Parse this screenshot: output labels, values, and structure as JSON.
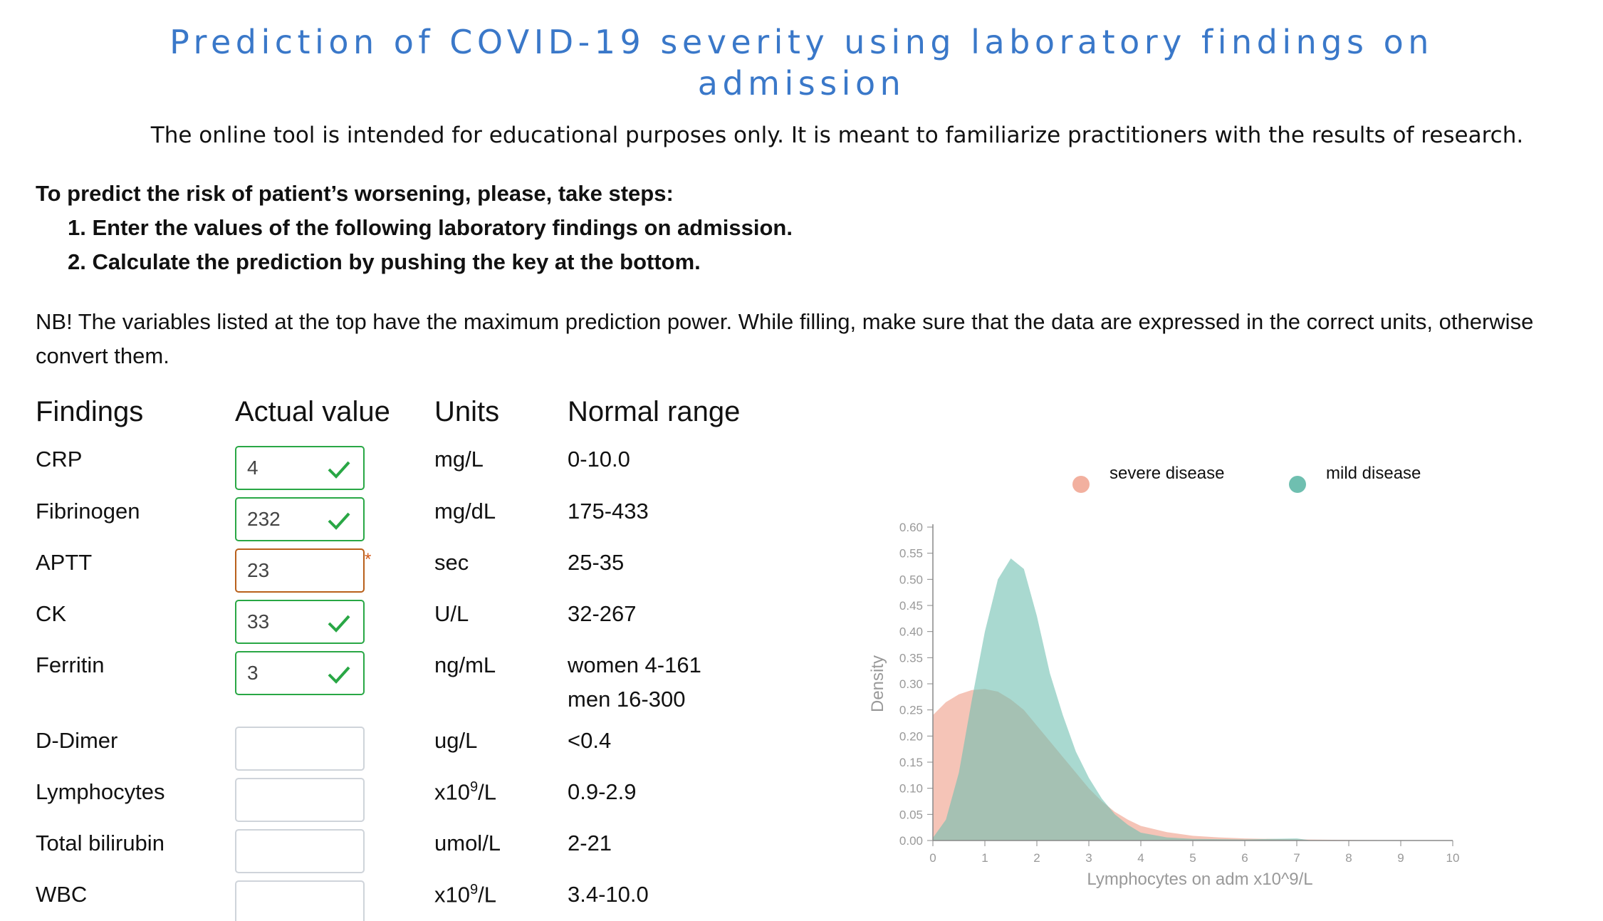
{
  "page": {
    "title": "Prediction of COVID-19 severity using laboratory findings on admission",
    "disclaimer": "The online tool is intended for educational purposes only. It is meant to familiarize practitioners with the results of research.",
    "steps_heading": "To predict the risk of patient’s worsening, please, take steps:",
    "steps": [
      "1. Enter the values of the following laboratory findings on admission.",
      "2. Calculate the prediction by pushing the key at the bottom."
    ],
    "note": "NB! The variables listed at the top have the maximum prediction power. While filling, make sure that the data are expressed in the correct units, otherwise convert them."
  },
  "table": {
    "headers": {
      "findings": "Findings",
      "actual": "Actual value",
      "units": "Units",
      "normal": "Normal range"
    },
    "rows": [
      {
        "finding": "CRP",
        "value": "4",
        "status": "valid",
        "units": "mg/L",
        "normal": "0-10.0"
      },
      {
        "finding": "Fibrinogen",
        "value": "232",
        "status": "valid",
        "units": "mg/dL",
        "normal": "175-433"
      },
      {
        "finding": "APTT",
        "value": "23",
        "status": "invalid",
        "required_mark": "*",
        "units": "sec",
        "normal": "25-35"
      },
      {
        "finding": "CK",
        "value": "33",
        "status": "valid",
        "units": "U/L",
        "normal": "32-267"
      },
      {
        "finding": "Ferritin",
        "value": "3",
        "status": "valid",
        "units": "ng/mL",
        "normal": "women 4-161",
        "normal2": "men 16-300"
      },
      {
        "finding": "D-Dimer",
        "value": "",
        "status": "empty",
        "units": "ug/L",
        "normal": "<0.4"
      },
      {
        "finding": "Lymphocytes",
        "value": "",
        "status": "empty",
        "units_base": "x10",
        "units_sup": "9",
        "units_tail": "/L",
        "normal": "0.9-2.9"
      },
      {
        "finding": "Total bilirubin",
        "value": "",
        "status": "empty",
        "units": "umol/L",
        "normal": "2-21"
      },
      {
        "finding": "WBC",
        "value": "",
        "status": "empty",
        "units_base": "x10",
        "units_sup": "9",
        "units_tail": "/L",
        "normal": "3.4-10.0"
      }
    ]
  },
  "colors": {
    "valid": "#29a745",
    "invalid": "#b9601b",
    "severe": "#f2b09f",
    "mild": "#6fbfb0"
  },
  "chart_data": {
    "type": "area",
    "xlabel": "Lymphocytes on adm x10^9/L",
    "ylabel": "Density",
    "xlim": [
      0,
      10
    ],
    "ylim": [
      0,
      0.6
    ],
    "xticks": [
      "0",
      "1",
      "2",
      "3",
      "4",
      "5",
      "6",
      "7",
      "8",
      "9",
      "10"
    ],
    "yticks": [
      "0.00",
      "0.05",
      "0.10",
      "0.15",
      "0.20",
      "0.25",
      "0.30",
      "0.35",
      "0.40",
      "0.45",
      "0.50",
      "0.55",
      "0.60"
    ],
    "legend_position": "top",
    "series": [
      {
        "name": "severe disease",
        "color": "#f2b09f",
        "x": [
          0,
          0.25,
          0.5,
          0.75,
          1.0,
          1.25,
          1.5,
          1.75,
          2.0,
          2.25,
          2.5,
          2.75,
          3.0,
          3.25,
          3.5,
          3.75,
          4.0,
          4.5,
          5.0,
          5.5,
          6.0,
          7.0,
          8.0,
          9.0,
          10.0
        ],
        "y": [
          0.24,
          0.265,
          0.28,
          0.288,
          0.29,
          0.285,
          0.27,
          0.25,
          0.22,
          0.19,
          0.16,
          0.13,
          0.1,
          0.075,
          0.055,
          0.04,
          0.028,
          0.016,
          0.009,
          0.006,
          0.004,
          0.002,
          0.001,
          0.0005,
          0.0
        ]
      },
      {
        "name": "mild disease",
        "color": "#6fbfb0",
        "x": [
          0,
          0.25,
          0.5,
          0.75,
          1.0,
          1.25,
          1.5,
          1.75,
          2.0,
          2.25,
          2.5,
          2.75,
          3.0,
          3.25,
          3.5,
          3.75,
          4.0,
          4.5,
          5.0,
          6.0,
          7.0,
          7.3
        ],
        "y": [
          0.005,
          0.04,
          0.13,
          0.27,
          0.4,
          0.5,
          0.54,
          0.52,
          0.43,
          0.32,
          0.24,
          0.17,
          0.12,
          0.08,
          0.05,
          0.03,
          0.015,
          0.006,
          0.003,
          0.002,
          0.004,
          0.0
        ]
      }
    ]
  }
}
